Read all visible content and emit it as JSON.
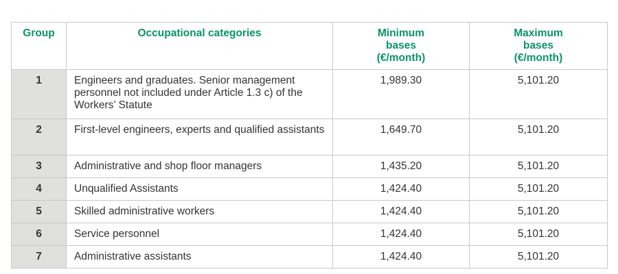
{
  "table": {
    "headers": [
      "Group",
      "Occupational categories",
      "Minimum bases (€/month)",
      "Maximum bases (€/month)"
    ],
    "rows": [
      {
        "group": "1",
        "category": "Engineers and graduates. Senior management personnel not included under Article 1.3 c) of the Workers’ Statute",
        "min": "1,989.30",
        "max": "5,101.20"
      },
      {
        "group": "2",
        "category": "First-level engineers, experts and qualified assistants",
        "min": "1,649.70",
        "max": "5,101.20"
      },
      {
        "group": "3",
        "category": "Administrative and shop floor managers",
        "min": "1,435.20",
        "max": "5,101.20"
      },
      {
        "group": "4",
        "category": "Unqualified Assistants",
        "min": "1,424.40",
        "max": "5,101.20"
      },
      {
        "group": "5",
        "category": "Skilled administrative workers",
        "min": "1,424.40",
        "max": "5,101.20"
      },
      {
        "group": "6",
        "category": "Service personnel",
        "min": "1,424.40",
        "max": "5,101.20"
      },
      {
        "group": "7",
        "category": "Administrative assistants",
        "min": "1,424.40",
        "max": "5,101.20"
      }
    ]
  },
  "colors": {
    "header_text": "#0a9466",
    "group_bg": "#e0e0dc"
  }
}
